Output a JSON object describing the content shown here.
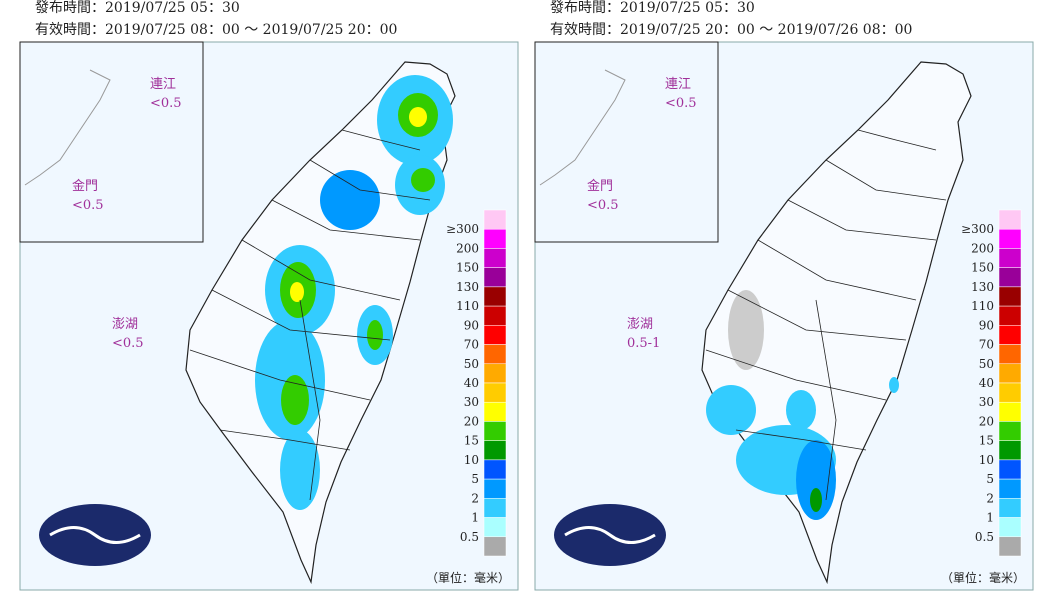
{
  "panels": [
    {
      "issued": "發布時間：2019/07/25 05：30",
      "valid": "有效時間：2019/07/25 08：00 ～ 2019/07/25 20：00",
      "islands": [
        {
          "name": "連江",
          "value": "<0.5"
        },
        {
          "name": "金門",
          "value": "<0.5"
        },
        {
          "name": "澎湖",
          "value": "<0.5"
        }
      ]
    },
    {
      "issued": "發布時間：2019/07/25 05：30",
      "valid": "有效時間：2019/07/25 20：00 ～ 2019/07/26 08：00",
      "islands": [
        {
          "name": "連江",
          "value": "<0.5"
        },
        {
          "name": "金門",
          "value": "<0.5"
        },
        {
          "name": "澎湖",
          "value": "0.5-1"
        }
      ]
    }
  ],
  "legend": {
    "labels": [
      "≥300",
      "200",
      "150",
      "130",
      "110",
      "90",
      "70",
      "50",
      "40",
      "30",
      "20",
      "15",
      "10",
      "5",
      "2",
      "1",
      "0.5"
    ],
    "colors": [
      "#ffc8f4",
      "#ff00ff",
      "#cc00cc",
      "#990099",
      "#990000",
      "#cc0000",
      "#ff0000",
      "#ff6600",
      "#ffaa00",
      "#ffcc00",
      "#ffff00",
      "#33cc00",
      "#009900",
      "#0055ff",
      "#0099ff",
      "#33ccff",
      "#aaffff",
      "#aaaaaa"
    ]
  },
  "unit": "（單位：毫米）"
}
